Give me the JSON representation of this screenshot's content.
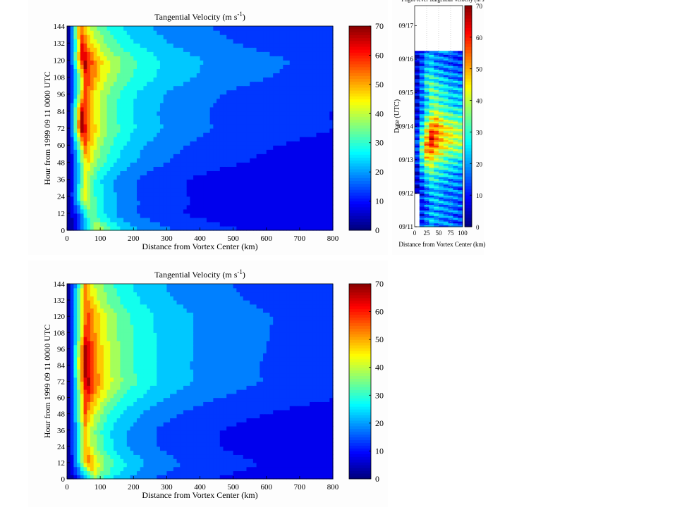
{
  "chart_data": [
    {
      "type": "heatmap",
      "title": "Tangential Velocity (m s",
      "title_superscript": "-1",
      "title_close": ")",
      "xlabel": "Distance from Vortex Center (km)",
      "ylabel": "Hour from 1999 09 11 0000 UTC",
      "xlim": [
        0,
        800
      ],
      "ylim": [
        0,
        144
      ],
      "xticks": [
        0,
        100,
        200,
        300,
        400,
        500,
        600,
        700,
        800
      ],
      "yticks": [
        0,
        12,
        24,
        36,
        48,
        60,
        72,
        84,
        96,
        108,
        120,
        132,
        144
      ],
      "colorbar": {
        "min": 0,
        "max": 70,
        "ticks": [
          0,
          10,
          20,
          30,
          40,
          50,
          60,
          70
        ]
      },
      "rmw_km": [
        95,
        70,
        50,
        55,
        60,
        55,
        45,
        45,
        55,
        60,
        50,
        45,
        40
      ],
      "vmax_ms": [
        40,
        35,
        45,
        40,
        48,
        55,
        70,
        65,
        58,
        62,
        70,
        60,
        55
      ],
      "hours": [
        0,
        12,
        24,
        36,
        48,
        60,
        72,
        84,
        96,
        108,
        120,
        132,
        144
      ]
    },
    {
      "type": "heatmap",
      "title": "Tangential Velocity (m s",
      "title_superscript": "-1",
      "title_close": ")",
      "xlabel": "Distance from Vortex Center (km)",
      "ylabel": "Hour from 1999 09 11 0000 UTC",
      "xlim": [
        0,
        800
      ],
      "ylim": [
        0,
        144
      ],
      "xticks": [
        0,
        100,
        200,
        300,
        400,
        500,
        600,
        700,
        800
      ],
      "yticks": [
        0,
        12,
        24,
        36,
        48,
        60,
        72,
        84,
        96,
        108,
        120,
        132,
        144
      ],
      "colorbar": {
        "min": 0,
        "max": 70,
        "ticks": [
          0,
          10,
          20,
          30,
          40,
          50,
          60,
          70
        ]
      },
      "rmw_km": [
        90,
        65,
        55,
        55,
        55,
        60,
        60,
        55,
        55,
        60,
        60,
        55,
        55
      ],
      "vmax_ms": [
        35,
        55,
        50,
        48,
        55,
        62,
        70,
        70,
        68,
        62,
        60,
        55,
        50
      ],
      "hours": [
        0,
        12,
        24,
        36,
        48,
        60,
        72,
        84,
        96,
        108,
        120,
        132,
        144
      ]
    },
    {
      "type": "heatmap",
      "title": "Flight-level Tangential Velocity (m s",
      "xlabel": "Distance from Vortex Center (km)",
      "ylabel": "Date (UTC)",
      "xlim": [
        0,
        100
      ],
      "xticks": [
        0,
        25,
        50,
        75,
        100
      ],
      "ylim_labels": [
        "09/11",
        "09/12",
        "09/13",
        "09/14",
        "09/15",
        "09/16",
        "09/17"
      ],
      "colorbar": {
        "min": 0,
        "max": 70,
        "ticks": [
          0,
          10,
          20,
          30,
          40,
          50,
          60,
          70
        ]
      }
    }
  ]
}
